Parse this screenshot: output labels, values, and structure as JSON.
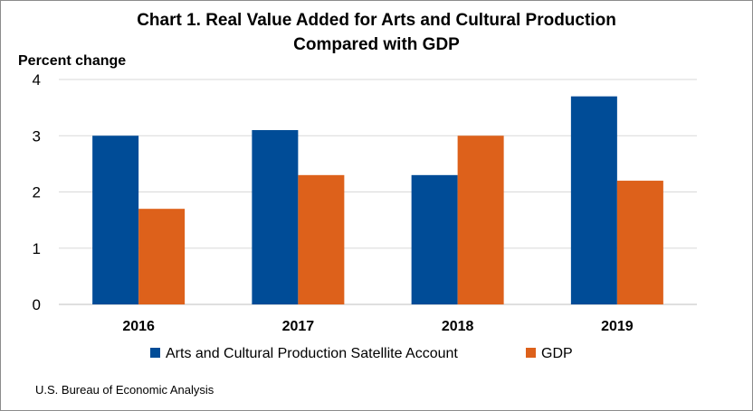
{
  "chart_data": {
    "type": "bar",
    "title_line1": "Chart 1. Real Value Added for Arts and Cultural Production",
    "title_line2": "Compared with GDP",
    "ylabel": "Percent change",
    "xlabel": "",
    "categories": [
      "2016",
      "2017",
      "2018",
      "2019"
    ],
    "series": [
      {
        "name": "Arts and Cultural Production Satellite Account",
        "color": "#004C97",
        "values": [
          3.0,
          3.1,
          2.3,
          3.7
        ]
      },
      {
        "name": "GDP",
        "color": "#DD611B",
        "values": [
          1.7,
          2.3,
          3.0,
          2.2
        ]
      }
    ],
    "ylim": [
      0,
      4
    ],
    "yticks": [
      "0",
      "1",
      "2",
      "3",
      "4"
    ],
    "grid": true,
    "legend_placement": "bottom",
    "source": "U.S. Bureau of Economic Analysis"
  }
}
